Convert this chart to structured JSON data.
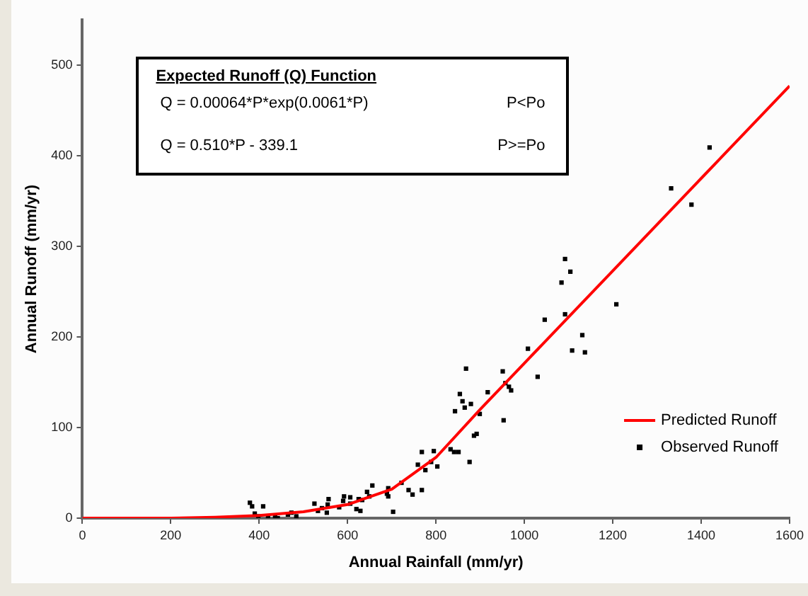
{
  "chart_data": {
    "type": "scatter",
    "xlabel": "Annual Rainfall (mm/yr)",
    "ylabel": "Annual Runoff (mm/yr)",
    "xlim": [
      0,
      1600
    ],
    "xticks": [
      0,
      200,
      400,
      600,
      800,
      1000,
      1200,
      1400,
      1600
    ],
    "ylim": [
      0,
      550
    ],
    "yticks": [
      0,
      100,
      200,
      300,
      400,
      500
    ],
    "grid": false,
    "legend": "bottom right",
    "annotations": [
      "Expected Runoff (Q) Function",
      "Q = 0.00064*P*exp(0.0061*P)",
      "P<Po",
      "Q = 0.510*P - 339.1",
      "P>=Po"
    ],
    "series": [
      {
        "name": "Predicted Runoff",
        "type": "line",
        "color": "#ff0000",
        "marker": "none",
        "line_style": "solid",
        "x": [
          0,
          200,
          300,
          400,
          500,
          600,
          700,
          800,
          900,
          1000,
          1200,
          1400,
          1600
        ],
        "values": [
          0,
          0,
          1,
          3,
          7,
          15,
          32,
          67,
          120,
          171,
          273,
          375,
          477
        ]
      },
      {
        "name": "Observed Runoff",
        "color": "#000000",
        "marker": "square",
        "x": [
          379,
          384,
          409,
          390,
          398,
          420,
          436,
          442,
          465,
          473,
          484,
          525,
          533,
          542,
          555,
          557,
          553,
          581,
          590,
          606,
          592,
          606,
          620,
          629,
          625,
          644,
          633,
          656,
          649,
          689,
          692,
          692,
          703,
          722,
          738,
          747,
          768,
          759,
          768,
          776,
          789,
          795,
          803,
          833,
          841,
          851,
          843,
          854,
          860,
          865,
          868,
          876,
          879,
          886,
          892,
          899,
          917,
          951,
          953,
          957,
          965,
          970,
          1008,
          1030,
          1046,
          1084,
          1092,
          1092,
          1104,
          1108,
          1131,
          1137,
          1208,
          1332,
          1378,
          1419
        ],
        "values": [
          17,
          13,
          13,
          5,
          2,
          2,
          1,
          0,
          4,
          6,
          2,
          16,
          8,
          11,
          15,
          21,
          6,
          12,
          19,
          16,
          24,
          23,
          10,
          8,
          21,
          29,
          20,
          36,
          24,
          27,
          33,
          24,
          7,
          39,
          31,
          26,
          31,
          59,
          73,
          53,
          62,
          74,
          57,
          76,
          73,
          73,
          118,
          137,
          129,
          122,
          165,
          62,
          126,
          91,
          93,
          115,
          139,
          162,
          108,
          149,
          145,
          141,
          187,
          156,
          219,
          260,
          225,
          286,
          272,
          185,
          202,
          183,
          236,
          364,
          346,
          409
        ]
      }
    ]
  }
}
